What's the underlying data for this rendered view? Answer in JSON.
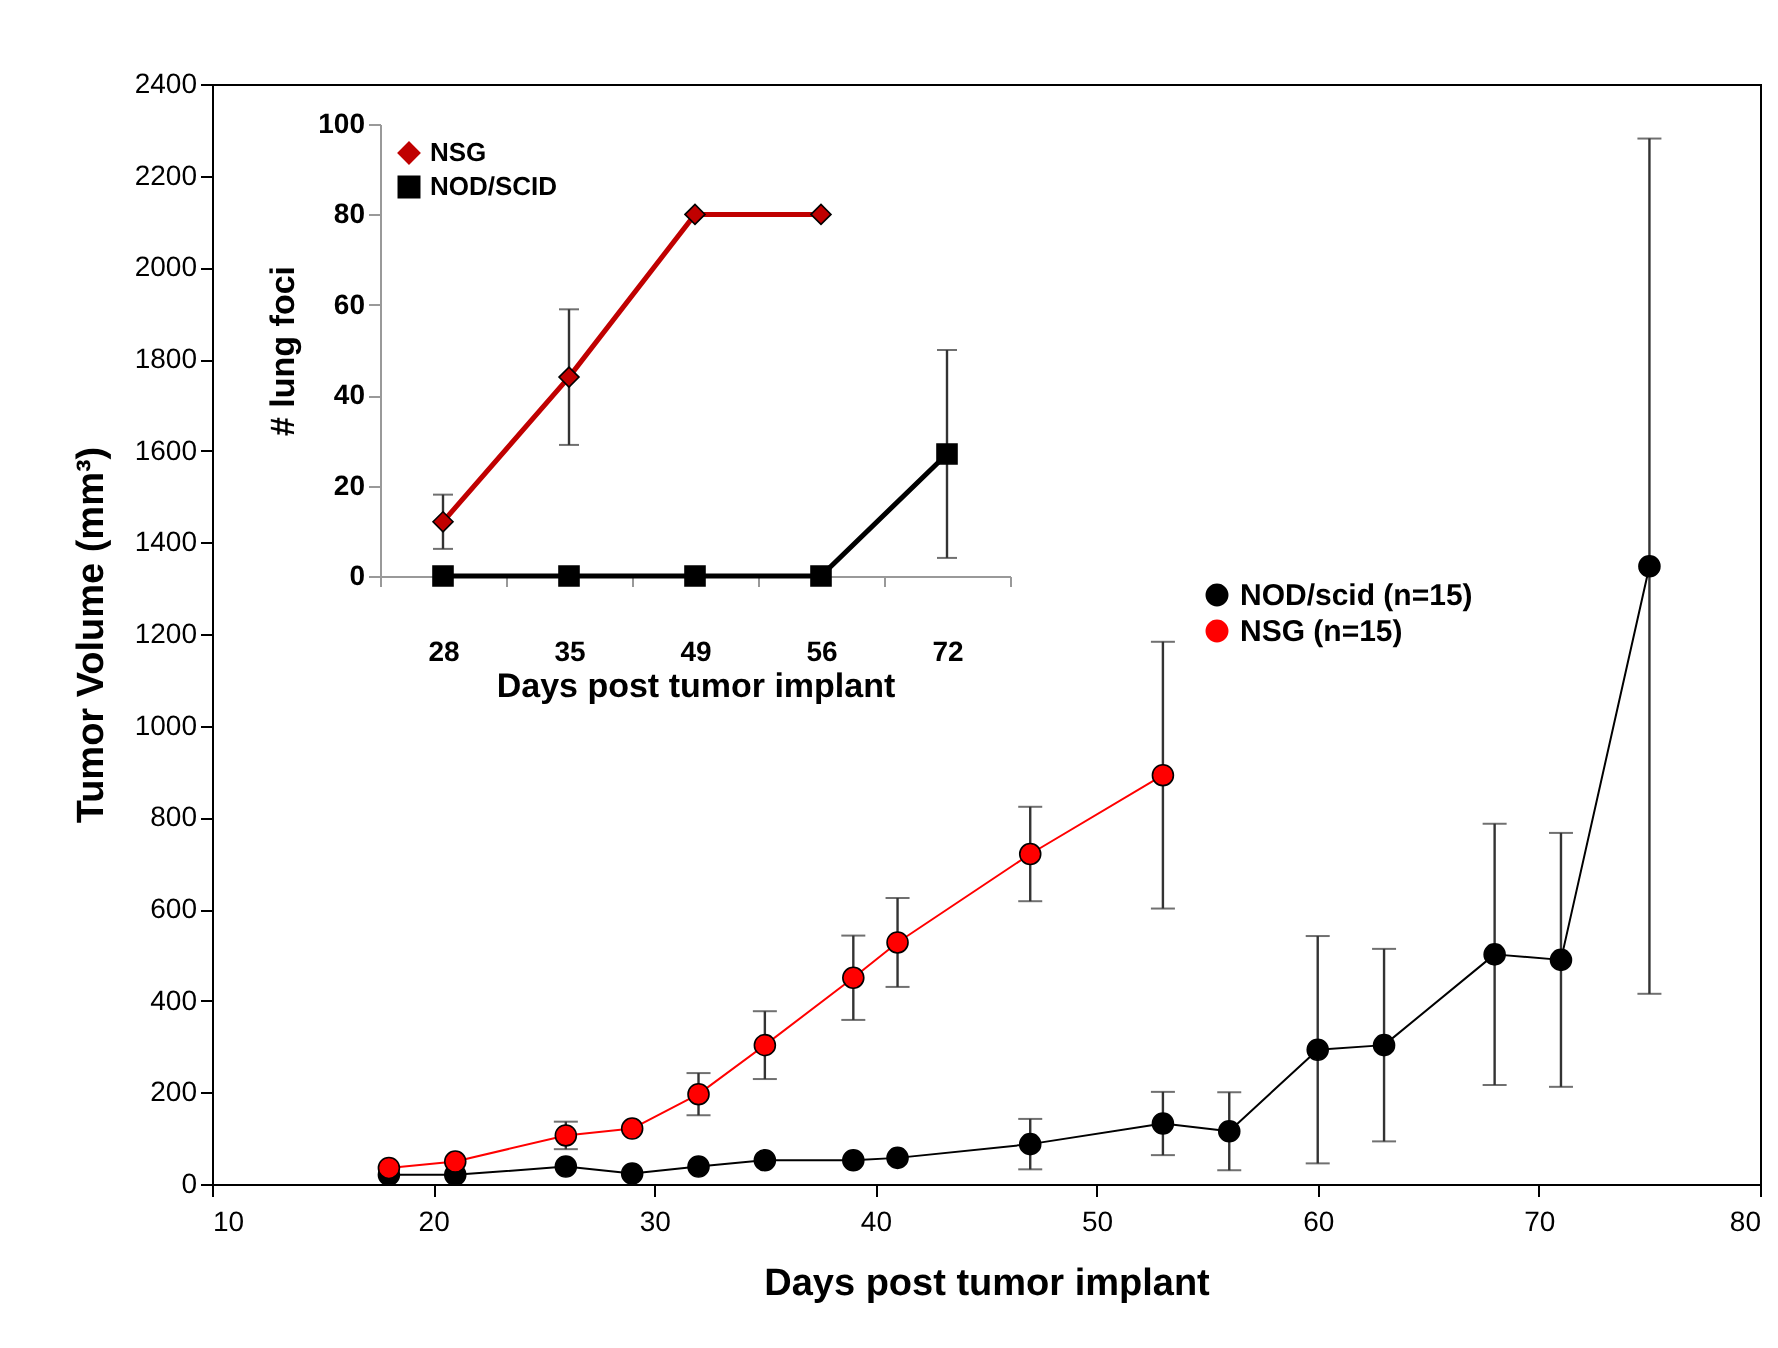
{
  "chart_data": [
    {
      "type": "line",
      "xlabel": "Days post tumor implant",
      "ylabel": "Tumor Volume (mm³)",
      "xlim": [
        10,
        80
      ],
      "xticks": [
        10,
        20,
        30,
        40,
        50,
        60,
        70,
        80
      ],
      "ylim": [
        0,
        2400
      ],
      "yticks": [
        0,
        200,
        400,
        600,
        800,
        1000,
        1200,
        1400,
        1600,
        1800,
        2000,
        2200,
        2400
      ],
      "marker": "circle",
      "legend": "right",
      "series": [
        {
          "name": "NOD/scid (n=15)",
          "color": "#000000",
          "x": [
            18,
            21,
            26,
            29,
            32,
            35,
            39,
            41,
            47,
            53,
            56,
            60,
            63,
            68,
            71,
            75
          ],
          "values": [
            20,
            20,
            38,
            23,
            38,
            52,
            52,
            57,
            87,
            132,
            115,
            293,
            303,
            501,
            489,
            1348
          ],
          "errors": [
            null,
            null,
            null,
            null,
            null,
            null,
            null,
            null,
            55,
            69,
            85,
            248,
            210,
            285,
            277,
            933
          ]
        },
        {
          "name": "NSG (n=15)",
          "color": "#ff0000",
          "x": [
            18,
            21,
            26,
            29,
            32,
            35,
            39,
            41,
            47,
            53
          ],
          "values": [
            35,
            49,
            106,
            121,
            196,
            303,
            450,
            527,
            720,
            892
          ],
          "errors": [
            null,
            null,
            30,
            null,
            46,
            74,
            92,
            97,
            103,
            291
          ]
        }
      ]
    },
    {
      "type": "line",
      "xlabel": "Days post tumor implant",
      "ylabel": "# lung  foci",
      "categories": [
        "28",
        "35",
        "49",
        "56",
        "72"
      ],
      "ylim": [
        0,
        100
      ],
      "yticks": [
        0,
        20,
        40,
        60,
        80,
        100
      ],
      "legend": "top left",
      "series": [
        {
          "name": "NSG",
          "color": "#c00000",
          "marker": "diamond",
          "values": [
            12,
            44,
            80,
            80,
            null
          ],
          "errors": [
            6,
            15,
            null,
            null,
            null
          ]
        },
        {
          "name": "NOD/SCID",
          "color": "#000000",
          "marker": "square",
          "values": [
            0,
            0,
            0,
            0,
            27
          ],
          "errors": [
            null,
            null,
            null,
            null,
            23
          ]
        }
      ]
    }
  ]
}
